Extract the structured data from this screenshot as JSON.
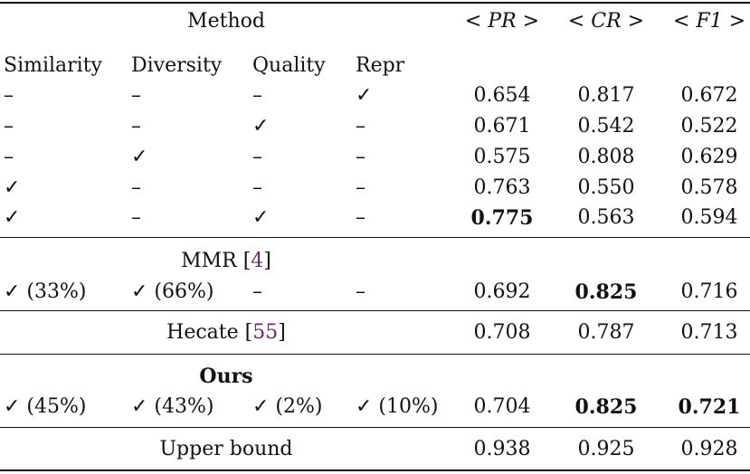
{
  "table": {
    "header": {
      "method": "Method",
      "pr": "< PR >",
      "cr": "< CR >",
      "f1": "< F1 >"
    },
    "subheader": [
      "Similarity",
      "Diversity",
      "Quality",
      "Repr"
    ],
    "rows": [
      {
        "sim": "–",
        "div": "–",
        "qual": "–",
        "repr": "✓",
        "pr": "0.654",
        "cr": "0.817",
        "f1": "0.672"
      },
      {
        "sim": "–",
        "div": "–",
        "qual": "✓",
        "repr": "–",
        "pr": "0.671",
        "cr": "0.542",
        "f1": "0.522"
      },
      {
        "sim": "–",
        "div": "✓",
        "qual": "–",
        "repr": "–",
        "pr": "0.575",
        "cr": "0.808",
        "f1": "0.629"
      },
      {
        "sim": "✓",
        "div": "–",
        "qual": "–",
        "repr": "–",
        "pr": "0.763",
        "cr": "0.550",
        "f1": "0.578"
      },
      {
        "sim": "✓",
        "div": "–",
        "qual": "✓",
        "repr": "–",
        "pr": "0.775",
        "cr": "0.563",
        "f1": "0.594"
      }
    ],
    "mmr": {
      "label": "MMR [",
      "cite": "4",
      "close": "]",
      "sim": "✓ (33%)",
      "div": "✓ (66%)",
      "qual": "–",
      "repr": "–",
      "pr": "0.692",
      "cr": "0.825",
      "f1": "0.716"
    },
    "hecate": {
      "label": "Hecate [",
      "cite": "55",
      "close": "]",
      "pr": "0.708",
      "cr": "0.787",
      "f1": "0.713"
    },
    "ours": {
      "label": "Ours",
      "sim": "✓ (45%)",
      "div": "✓ (43%)",
      "qual": "✓ (2%)",
      "repr": "✓ (10%)",
      "pr": "0.704",
      "cr": "0.825",
      "f1": "0.721"
    },
    "upper": {
      "label": "Upper bound",
      "pr": "0.938",
      "cr": "0.925",
      "f1": "0.928"
    }
  }
}
